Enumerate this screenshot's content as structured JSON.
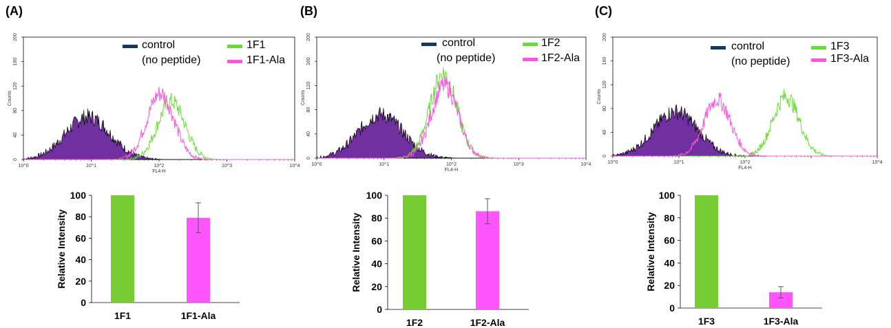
{
  "colors": {
    "control": "#17375e",
    "fill": "#7030a0",
    "green": "#66dd33",
    "magenta": "#ff55dd",
    "bar_green": "#77cc33",
    "bar_magenta": "#ff55ff"
  },
  "panels": [
    {
      "label": "(A)",
      "legend": {
        "control": "control",
        "control_note": "(no peptide)",
        "peptide": "1F1",
        "ala": "1F1-Ala"
      },
      "histogram": {
        "xlabel": "FL4-H",
        "ylabel": "Counts",
        "control_peak_log": 0.95,
        "control_peak_count": 70,
        "peptide_peak_log": 2.18,
        "peptide_peak_count": 95,
        "ala_peak_log": 2.02,
        "ala_peak_count": 108
      },
      "bar": {
        "categories": [
          "1F1",
          "1F1-Ala"
        ],
        "values": [
          100,
          79
        ],
        "errors": [
          0,
          14
        ]
      }
    },
    {
      "label": "(B)",
      "legend": {
        "control": "control",
        "control_note": "(no peptide)",
        "peptide": "1F2",
        "ala": "1F2-Ala"
      },
      "histogram": {
        "xlabel": "FL4-H",
        "ylabel": "Counts",
        "control_peak_log": 0.95,
        "control_peak_count": 72,
        "peptide_peak_log": 1.88,
        "peptide_peak_count": 140,
        "ala_peak_log": 1.9,
        "ala_peak_count": 120
      },
      "bar": {
        "categories": [
          "1F2",
          "1F2-Ala"
        ],
        "values": [
          100,
          86
        ],
        "errors": [
          0,
          11
        ]
      }
    },
    {
      "label": "(C)",
      "legend": {
        "control": "control",
        "control_note": "(no peptide)",
        "peptide": "1F3",
        "ala": "1F3-Ala"
      },
      "histogram": {
        "xlabel": "FL4-H",
        "ylabel": "Counts",
        "control_peak_log": 0.95,
        "control_peak_count": 75,
        "peptide_peak_log": 2.62,
        "peptide_peak_count": 100,
        "ala_peak_log": 1.58,
        "ala_peak_count": 95
      },
      "bar": {
        "categories": [
          "1F3",
          "1F3-Ala"
        ],
        "values": [
          100,
          14
        ],
        "errors": [
          0,
          5
        ]
      }
    }
  ],
  "chart_data": [
    {
      "type": "area",
      "title": "",
      "xlabel": "FL4-H",
      "ylabel": "Counts",
      "xscale": "log",
      "xlim": [
        1,
        10000
      ],
      "ylim": [
        0,
        200
      ],
      "x_ticks": [
        "10^0",
        "10^1",
        "10^2",
        "10^3",
        "10^4"
      ],
      "y_ticks": [
        0,
        40,
        80,
        120,
        160,
        200
      ],
      "series": [
        {
          "name": "control (no peptide)",
          "peak_x": 9,
          "peak_y": 70
        },
        {
          "name": "1F1",
          "peak_x": 150,
          "peak_y": 95
        },
        {
          "name": "1F1-Ala",
          "peak_x": 105,
          "peak_y": 108
        }
      ]
    },
    {
      "type": "bar",
      "title": "",
      "categories": [
        "1F1",
        "1F1-Ala"
      ],
      "values": [
        100,
        79
      ],
      "errors": [
        0,
        14
      ],
      "ylabel": "Relative Intensity",
      "ylim": [
        0,
        100
      ]
    },
    {
      "type": "area",
      "title": "",
      "xlabel": "FL4-H",
      "ylabel": "Counts",
      "xscale": "log",
      "xlim": [
        1,
        10000
      ],
      "ylim": [
        0,
        200
      ],
      "x_ticks": [
        "10^0",
        "10^1",
        "10^2",
        "10^3",
        "10^4"
      ],
      "y_ticks": [
        0,
        40,
        80,
        120,
        160,
        200
      ],
      "series": [
        {
          "name": "control (no peptide)",
          "peak_x": 9,
          "peak_y": 72
        },
        {
          "name": "1F2",
          "peak_x": 75,
          "peak_y": 140
        },
        {
          "name": "1F2-Ala",
          "peak_x": 80,
          "peak_y": 120
        }
      ]
    },
    {
      "type": "bar",
      "title": "",
      "categories": [
        "1F2",
        "1F2-Ala"
      ],
      "values": [
        100,
        86
      ],
      "errors": [
        0,
        11
      ],
      "ylabel": "Relative Intensity",
      "ylim": [
        0,
        100
      ]
    },
    {
      "type": "area",
      "title": "",
      "xlabel": "FL4-H",
      "ylabel": "Counts",
      "xscale": "log",
      "xlim": [
        1,
        10000
      ],
      "ylim": [
        0,
        200
      ],
      "x_ticks": [
        "10^0",
        "10^1",
        "10^2",
        "10^3",
        "10^4"
      ],
      "y_ticks": [
        0,
        40,
        80,
        120,
        160,
        200
      ],
      "series": [
        {
          "name": "control (no peptide)",
          "peak_x": 9,
          "peak_y": 75
        },
        {
          "name": "1F3",
          "peak_x": 420,
          "peak_y": 100
        },
        {
          "name": "1F3-Ala",
          "peak_x": 38,
          "peak_y": 95
        }
      ]
    },
    {
      "type": "bar",
      "title": "",
      "categories": [
        "1F3",
        "1F3-Ala"
      ],
      "values": [
        100,
        14
      ],
      "errors": [
        0,
        5
      ],
      "ylabel": "Relative Intensity",
      "ylim": [
        0,
        100
      ]
    }
  ],
  "axes": {
    "hist_yticks": [
      "0",
      "40",
      "80",
      "120",
      "160",
      "200"
    ],
    "bar_yticks": [
      "0",
      "20",
      "40",
      "60",
      "80",
      "100"
    ],
    "bar_ylabel": "Relative Intensity"
  }
}
